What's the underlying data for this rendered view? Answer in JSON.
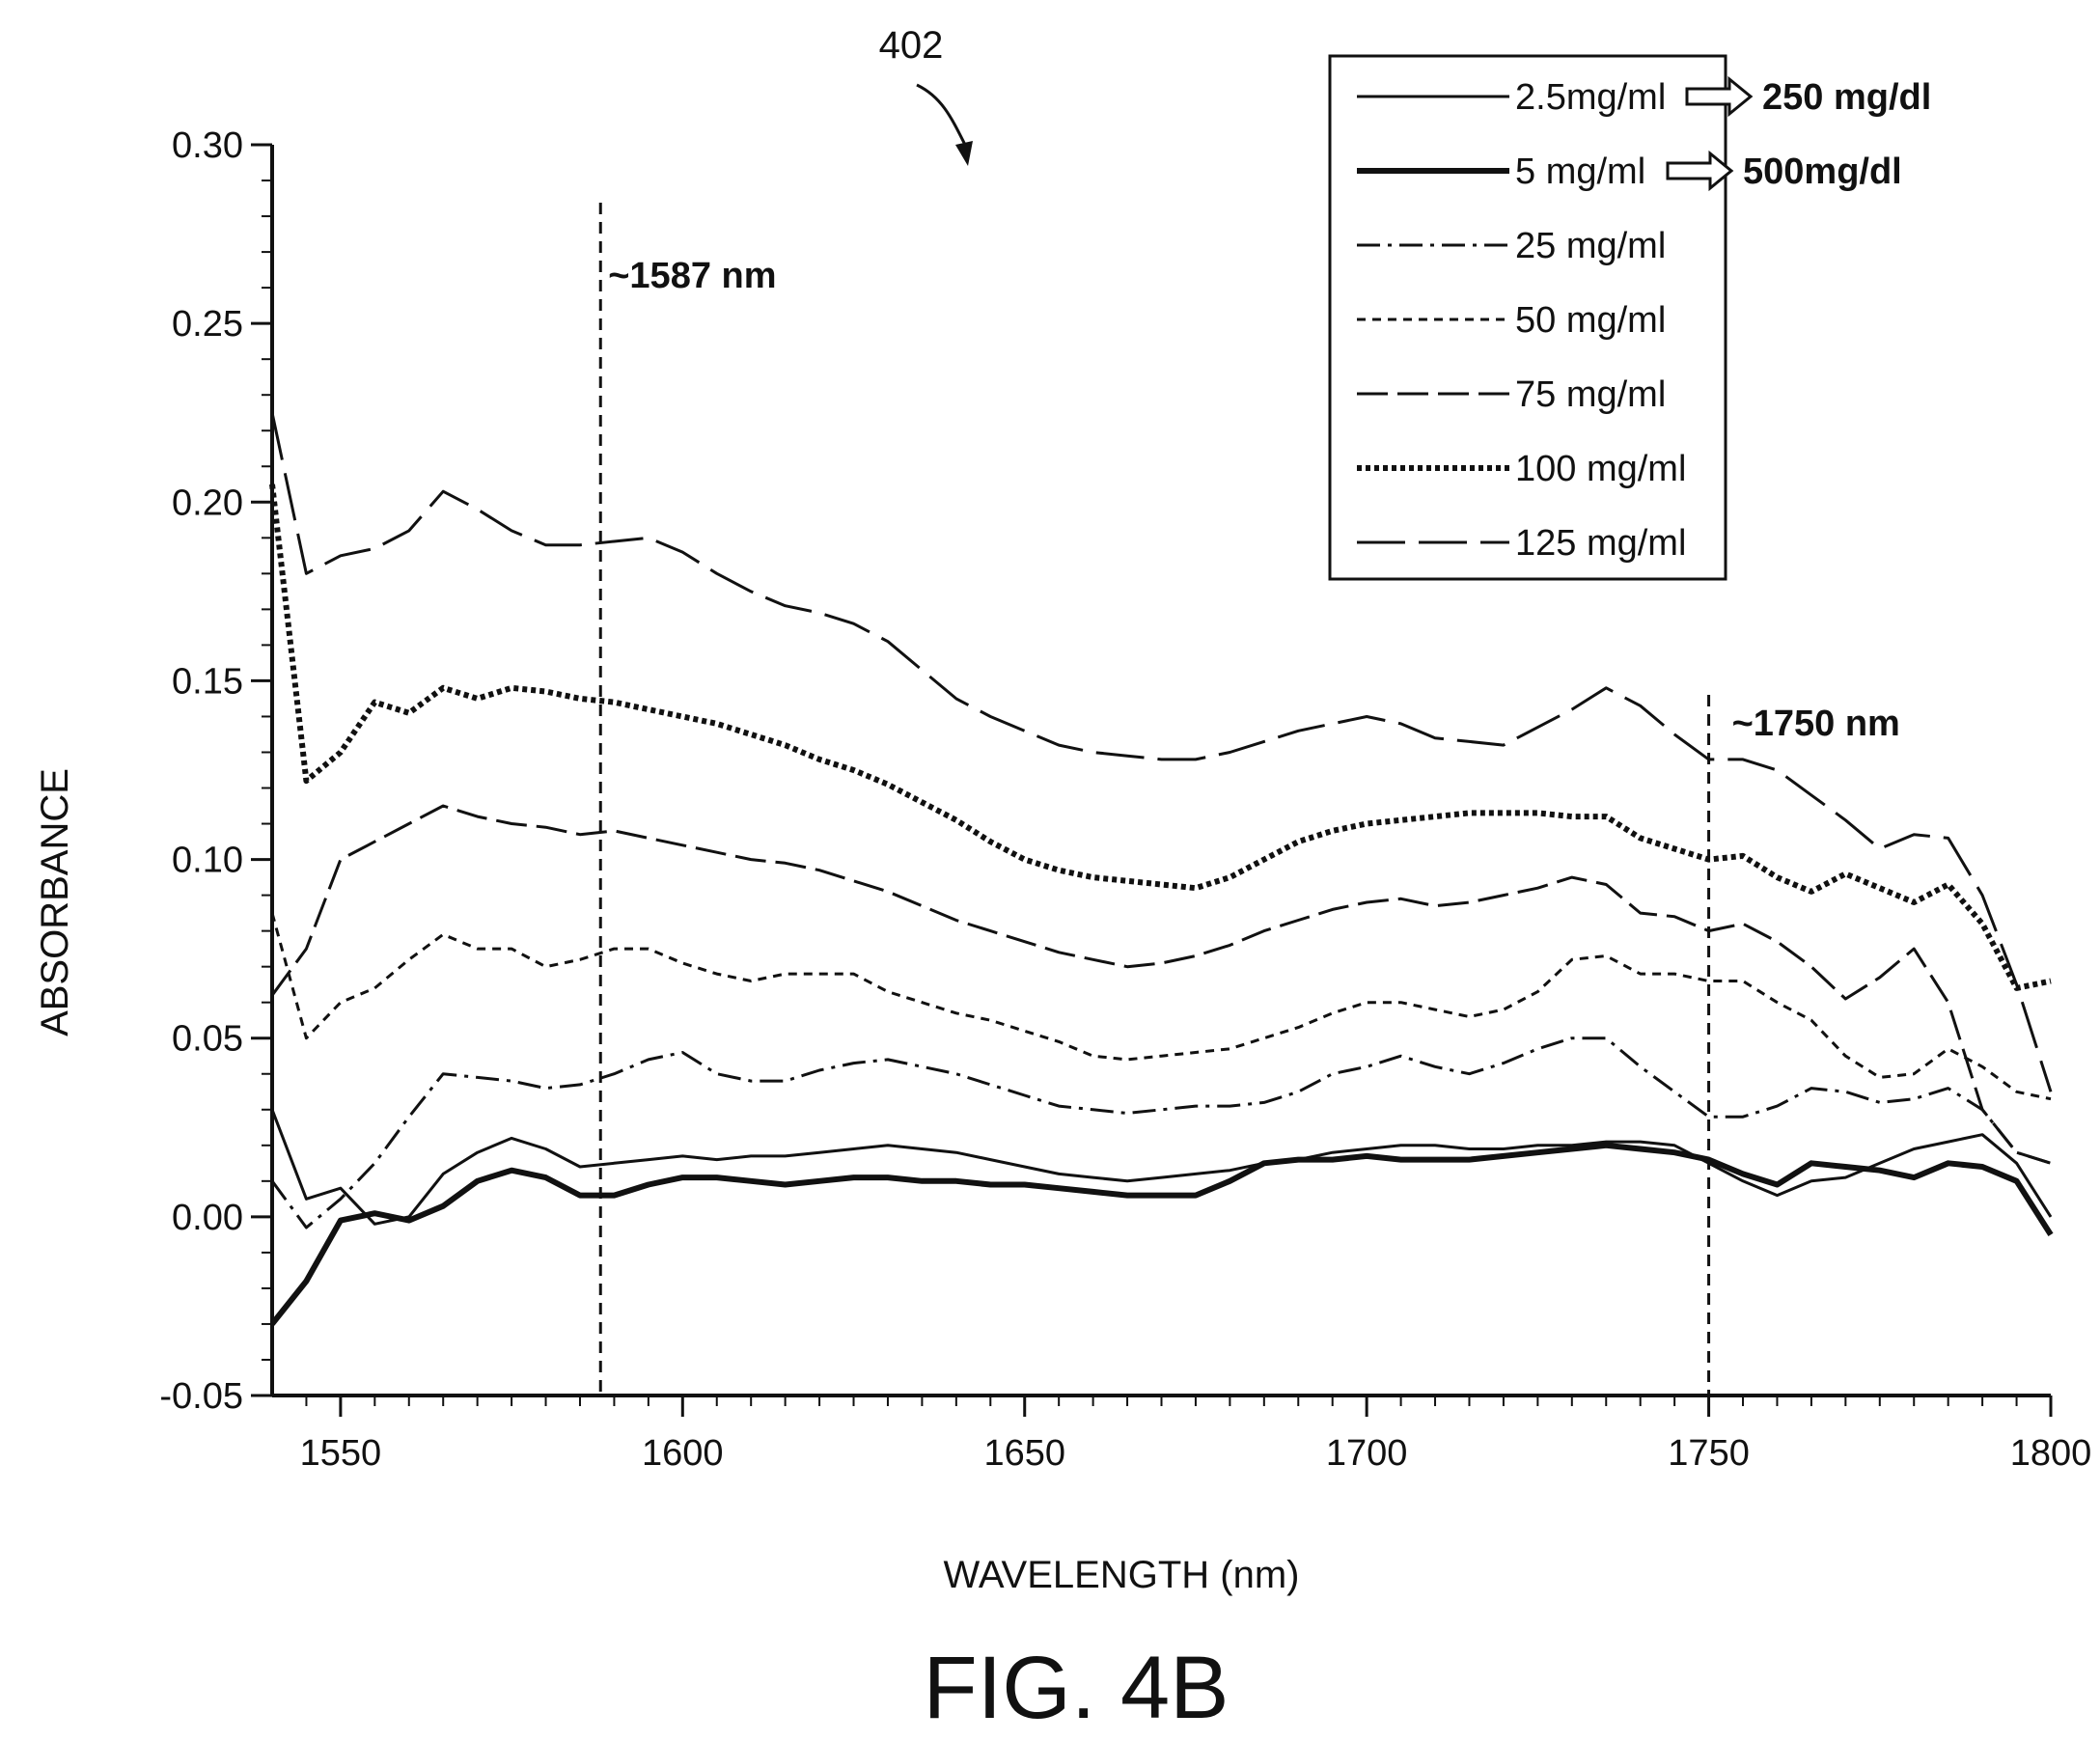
{
  "figure": {
    "label": "FIG. 4B",
    "reference": "402"
  },
  "chart_data": {
    "type": "line",
    "title": "",
    "xlabel": "WAVELENGTH (nm)",
    "ylabel": "ABSORBANCE",
    "xlim": [
      1540,
      1800
    ],
    "ylim": [
      -0.05,
      0.3
    ],
    "xticks": [
      1550,
      1600,
      1650,
      1700,
      1750,
      1800
    ],
    "xtick_labels": [
      "1550",
      "1600",
      "1650",
      "1700",
      "1750",
      "1800"
    ],
    "yticks": [
      -0.05,
      0.0,
      0.05,
      0.1,
      0.15,
      0.2,
      0.25,
      0.3
    ],
    "ytick_labels": [
      "-0.05",
      "0.00",
      "0.05",
      "0.10",
      "0.15",
      "0.20",
      "0.25",
      "0.30"
    ],
    "grid": false,
    "legend_position": "top-right",
    "annotations": [
      {
        "text": "~1587 nm",
        "x": 1588
      },
      {
        "text": "~1750 nm",
        "x": 1750
      }
    ],
    "series": [
      {
        "name": "2.5mg/ml",
        "conversion": "250 mg/dl",
        "style": "solid-thin",
        "x": [
          1540,
          1545,
          1550,
          1555,
          1560,
          1565,
          1570,
          1575,
          1580,
          1585,
          1590,
          1595,
          1600,
          1605,
          1610,
          1615,
          1620,
          1625,
          1630,
          1635,
          1640,
          1645,
          1650,
          1655,
          1660,
          1665,
          1670,
          1675,
          1680,
          1685,
          1690,
          1695,
          1700,
          1705,
          1710,
          1715,
          1720,
          1725,
          1730,
          1735,
          1740,
          1745,
          1750,
          1755,
          1760,
          1765,
          1770,
          1775,
          1780,
          1785,
          1790,
          1795,
          1800
        ],
        "y": [
          0.03,
          0.005,
          0.008,
          -0.002,
          0.0,
          0.012,
          0.018,
          0.022,
          0.019,
          0.014,
          0.015,
          0.016,
          0.017,
          0.016,
          0.017,
          0.017,
          0.018,
          0.019,
          0.02,
          0.019,
          0.018,
          0.016,
          0.014,
          0.012,
          0.011,
          0.01,
          0.011,
          0.012,
          0.013,
          0.015,
          0.016,
          0.018,
          0.019,
          0.02,
          0.02,
          0.019,
          0.019,
          0.02,
          0.02,
          0.021,
          0.021,
          0.02,
          0.015,
          0.01,
          0.006,
          0.01,
          0.011,
          0.015,
          0.019,
          0.021,
          0.023,
          0.015,
          0.0
        ]
      },
      {
        "name": "5 mg/ml",
        "conversion": "500mg/dl",
        "style": "solid-thick",
        "x": [
          1540,
          1545,
          1550,
          1555,
          1560,
          1565,
          1570,
          1575,
          1580,
          1585,
          1590,
          1595,
          1600,
          1605,
          1610,
          1615,
          1620,
          1625,
          1630,
          1635,
          1640,
          1645,
          1650,
          1655,
          1660,
          1665,
          1670,
          1675,
          1680,
          1685,
          1690,
          1695,
          1700,
          1705,
          1710,
          1715,
          1720,
          1725,
          1730,
          1735,
          1740,
          1745,
          1750,
          1755,
          1760,
          1765,
          1770,
          1775,
          1780,
          1785,
          1790,
          1795,
          1800
        ],
        "y": [
          -0.03,
          -0.018,
          -0.001,
          0.001,
          -0.001,
          0.003,
          0.01,
          0.013,
          0.011,
          0.006,
          0.006,
          0.009,
          0.011,
          0.011,
          0.01,
          0.009,
          0.01,
          0.011,
          0.011,
          0.01,
          0.01,
          0.009,
          0.009,
          0.008,
          0.007,
          0.006,
          0.006,
          0.006,
          0.01,
          0.015,
          0.016,
          0.016,
          0.017,
          0.016,
          0.016,
          0.016,
          0.017,
          0.018,
          0.019,
          0.02,
          0.019,
          0.018,
          0.016,
          0.012,
          0.009,
          0.015,
          0.014,
          0.013,
          0.011,
          0.015,
          0.014,
          0.01,
          -0.005
        ]
      },
      {
        "name": "25 mg/ml",
        "conversion": "",
        "style": "dash-dot",
        "x": [
          1540,
          1545,
          1550,
          1555,
          1560,
          1565,
          1570,
          1575,
          1580,
          1585,
          1590,
          1595,
          1600,
          1605,
          1610,
          1615,
          1620,
          1625,
          1630,
          1635,
          1640,
          1645,
          1650,
          1655,
          1660,
          1665,
          1670,
          1675,
          1680,
          1685,
          1690,
          1695,
          1700,
          1705,
          1710,
          1715,
          1720,
          1725,
          1730,
          1735,
          1740,
          1745,
          1750,
          1755,
          1760,
          1765,
          1770,
          1775,
          1780,
          1785,
          1790,
          1795,
          1800
        ],
        "y": [
          0.01,
          -0.003,
          0.005,
          0.015,
          0.028,
          0.04,
          0.039,
          0.038,
          0.036,
          0.037,
          0.04,
          0.044,
          0.046,
          0.04,
          0.038,
          0.038,
          0.041,
          0.043,
          0.044,
          0.042,
          0.04,
          0.037,
          0.034,
          0.031,
          0.03,
          0.029,
          0.03,
          0.031,
          0.031,
          0.032,
          0.035,
          0.04,
          0.042,
          0.045,
          0.042,
          0.04,
          0.043,
          0.047,
          0.05,
          0.05,
          0.042,
          0.035,
          0.028,
          0.028,
          0.031,
          0.036,
          0.035,
          0.032,
          0.033,
          0.036,
          0.03,
          0.018,
          0.015
        ]
      },
      {
        "name": "50 mg/ml",
        "conversion": "",
        "style": "short-dash",
        "x": [
          1540,
          1545,
          1550,
          1555,
          1560,
          1565,
          1570,
          1575,
          1580,
          1585,
          1590,
          1595,
          1600,
          1605,
          1610,
          1615,
          1620,
          1625,
          1630,
          1635,
          1640,
          1645,
          1650,
          1655,
          1660,
          1665,
          1670,
          1675,
          1680,
          1685,
          1690,
          1695,
          1700,
          1705,
          1710,
          1715,
          1720,
          1725,
          1730,
          1735,
          1740,
          1745,
          1750,
          1755,
          1760,
          1765,
          1770,
          1775,
          1780,
          1785,
          1790,
          1795,
          1800
        ],
        "y": [
          0.085,
          0.05,
          0.06,
          0.064,
          0.072,
          0.079,
          0.075,
          0.075,
          0.07,
          0.072,
          0.075,
          0.075,
          0.071,
          0.068,
          0.066,
          0.068,
          0.068,
          0.068,
          0.063,
          0.06,
          0.057,
          0.055,
          0.052,
          0.049,
          0.045,
          0.044,
          0.045,
          0.046,
          0.047,
          0.05,
          0.053,
          0.057,
          0.06,
          0.06,
          0.058,
          0.056,
          0.058,
          0.063,
          0.072,
          0.073,
          0.068,
          0.068,
          0.066,
          0.066,
          0.06,
          0.055,
          0.045,
          0.039,
          0.04,
          0.047,
          0.042,
          0.035,
          0.033
        ]
      },
      {
        "name": "75 mg/ml",
        "conversion": "",
        "style": "long-dash-short",
        "x": [
          1540,
          1545,
          1550,
          1555,
          1560,
          1565,
          1570,
          1575,
          1580,
          1585,
          1590,
          1595,
          1600,
          1605,
          1610,
          1615,
          1620,
          1625,
          1630,
          1635,
          1640,
          1645,
          1650,
          1655,
          1660,
          1665,
          1670,
          1675,
          1680,
          1685,
          1690,
          1695,
          1700,
          1705,
          1710,
          1715,
          1720,
          1725,
          1730,
          1735,
          1740,
          1745,
          1750,
          1755,
          1760,
          1765,
          1770,
          1775,
          1780,
          1785,
          1790,
          1795,
          1800
        ],
        "y": [
          0.062,
          0.075,
          0.1,
          0.105,
          0.11,
          0.115,
          0.112,
          0.11,
          0.109,
          0.107,
          0.108,
          0.106,
          0.104,
          0.102,
          0.1,
          0.099,
          0.097,
          0.094,
          0.091,
          0.087,
          0.083,
          0.08,
          0.077,
          0.074,
          0.072,
          0.07,
          0.071,
          0.073,
          0.076,
          0.08,
          0.083,
          0.086,
          0.088,
          0.089,
          0.087,
          0.088,
          0.09,
          0.092,
          0.095,
          0.093,
          0.085,
          0.084,
          0.08,
          0.082,
          0.077,
          0.07,
          0.061,
          0.067,
          0.075,
          0.06,
          0.03,
          0.018,
          0.015
        ]
      },
      {
        "name": "100 mg/ml",
        "conversion": "",
        "style": "dotted-thick",
        "x": [
          1540,
          1545,
          1550,
          1555,
          1560,
          1565,
          1570,
          1575,
          1580,
          1585,
          1590,
          1595,
          1600,
          1605,
          1610,
          1615,
          1620,
          1625,
          1630,
          1635,
          1640,
          1645,
          1650,
          1655,
          1660,
          1665,
          1670,
          1675,
          1680,
          1685,
          1690,
          1695,
          1700,
          1705,
          1710,
          1715,
          1720,
          1725,
          1730,
          1735,
          1740,
          1745,
          1750,
          1755,
          1760,
          1765,
          1770,
          1775,
          1780,
          1785,
          1790,
          1795,
          1800
        ],
        "y": [
          0.205,
          0.122,
          0.13,
          0.144,
          0.141,
          0.148,
          0.145,
          0.148,
          0.147,
          0.145,
          0.144,
          0.142,
          0.14,
          0.138,
          0.135,
          0.132,
          0.128,
          0.125,
          0.121,
          0.116,
          0.111,
          0.105,
          0.1,
          0.097,
          0.095,
          0.094,
          0.093,
          0.092,
          0.095,
          0.1,
          0.105,
          0.108,
          0.11,
          0.111,
          0.112,
          0.113,
          0.113,
          0.113,
          0.112,
          0.112,
          0.106,
          0.103,
          0.1,
          0.101,
          0.095,
          0.091,
          0.096,
          0.092,
          0.088,
          0.093,
          0.082,
          0.064,
          0.066
        ]
      },
      {
        "name": "125 mg/ml",
        "conversion": "",
        "style": "long-dash",
        "x": [
          1540,
          1545,
          1550,
          1555,
          1560,
          1565,
          1570,
          1575,
          1580,
          1585,
          1590,
          1595,
          1600,
          1605,
          1610,
          1615,
          1620,
          1625,
          1630,
          1635,
          1640,
          1645,
          1650,
          1655,
          1660,
          1665,
          1670,
          1675,
          1680,
          1685,
          1690,
          1695,
          1700,
          1705,
          1710,
          1715,
          1720,
          1725,
          1730,
          1735,
          1740,
          1745,
          1750,
          1755,
          1760,
          1765,
          1770,
          1775,
          1780,
          1785,
          1790,
          1795,
          1800
        ],
        "y": [
          0.225,
          0.18,
          0.185,
          0.187,
          0.192,
          0.203,
          0.198,
          0.192,
          0.188,
          0.188,
          0.189,
          0.19,
          0.186,
          0.18,
          0.175,
          0.171,
          0.169,
          0.166,
          0.161,
          0.153,
          0.145,
          0.14,
          0.136,
          0.132,
          0.13,
          0.129,
          0.128,
          0.128,
          0.13,
          0.133,
          0.136,
          0.138,
          0.14,
          0.138,
          0.134,
          0.133,
          0.132,
          0.137,
          0.142,
          0.148,
          0.143,
          0.135,
          0.128,
          0.128,
          0.125,
          0.118,
          0.111,
          0.103,
          0.107,
          0.106,
          0.09,
          0.065,
          0.035
        ]
      }
    ]
  }
}
